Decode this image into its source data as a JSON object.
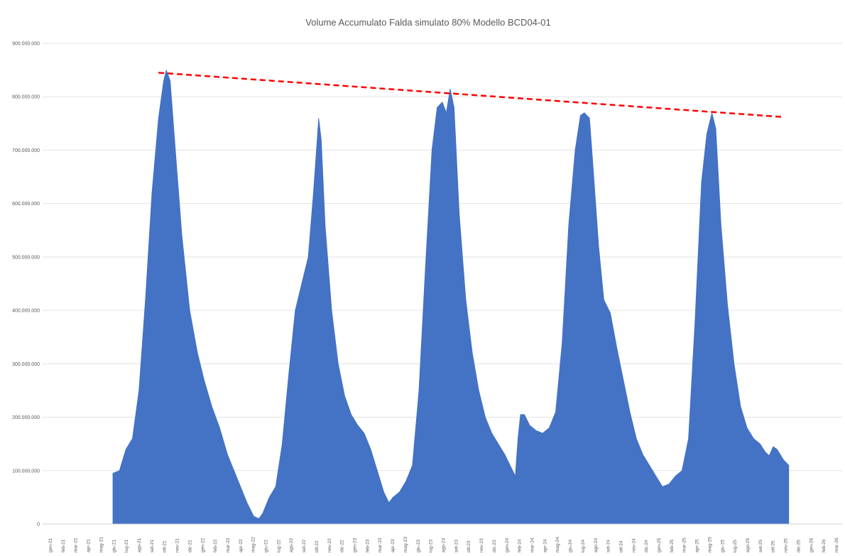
{
  "chart_data": {
    "type": "area",
    "title": "Volume Accumulato Falda simulato 80% Modello BCD04-01",
    "xlabel": "",
    "ylabel": "",
    "ylim": [
      0,
      900000000
    ],
    "y_ticks": [
      {
        "value": 0,
        "label": "0"
      },
      {
        "value": 100000000,
        "label": "100.000.000"
      },
      {
        "value": 200000000,
        "label": "200.000.000"
      },
      {
        "value": 300000000,
        "label": "300.000.000"
      },
      {
        "value": 400000000,
        "label": "400.000.000"
      },
      {
        "value": 500000000,
        "label": "500.000.000"
      },
      {
        "value": 600000000,
        "label": "600.000.000"
      },
      {
        "value": 700000000,
        "label": "700.000.000"
      },
      {
        "value": 800000000,
        "label": "800.000.000"
      },
      {
        "value": 900000000,
        "label": "900.000.000"
      }
    ],
    "grid": true,
    "legend": "none",
    "categories": [
      "gen-21",
      "feb-21",
      "mar-21",
      "apr-21",
      "mag-21",
      "giu-21",
      "lug-21",
      "ago-21",
      "set-21",
      "ott-21",
      "nov-21",
      "dic-21",
      "gen-22",
      "feb-22",
      "mar-22",
      "apr-22",
      "mag-22",
      "giu-22",
      "lug-22",
      "ago-22",
      "set-22",
      "ott-22",
      "nov-22",
      "dic-22",
      "gen-23",
      "feb-23",
      "mar-23",
      "apr-23",
      "mag-23",
      "giu-23",
      "lug-23",
      "ago-23",
      "set-23",
      "ott-23",
      "nov-23",
      "dic-23",
      "gen-24",
      "feb-24",
      "mar-24",
      "apr-24",
      "mag-24",
      "giu-24",
      "lug-24",
      "ago-24",
      "set-24",
      "ott-24",
      "nov-24",
      "dic-24",
      "gen-25",
      "feb-25",
      "mar-25",
      "apr-25",
      "mag-25",
      "giu-25",
      "lug-25",
      "ago-25",
      "set-25",
      "ott-25",
      "nov-25",
      "dic-25",
      "gen-26",
      "feb-26",
      "mar-26"
    ],
    "series": [
      {
        "color": "#4472C4",
        "points": [
          [
            4.0,
            0
          ],
          [
            4.0,
            95000000
          ],
          [
            4.5,
            100000000
          ],
          [
            5.0,
            140000000
          ],
          [
            5.5,
            160000000
          ],
          [
            6.0,
            250000000
          ],
          [
            6.5,
            420000000
          ],
          [
            7.0,
            620000000
          ],
          [
            7.5,
            760000000
          ],
          [
            7.9,
            830000000
          ],
          [
            8.1,
            850000000
          ],
          [
            8.4,
            830000000
          ],
          [
            8.8,
            700000000
          ],
          [
            9.3,
            540000000
          ],
          [
            9.9,
            400000000
          ],
          [
            10.5,
            320000000
          ],
          [
            11.0,
            270000000
          ],
          [
            11.6,
            220000000
          ],
          [
            12.2,
            180000000
          ],
          [
            12.8,
            130000000
          ],
          [
            13.3,
            100000000
          ],
          [
            13.8,
            70000000
          ],
          [
            14.3,
            40000000
          ],
          [
            14.8,
            15000000
          ],
          [
            15.2,
            10000000
          ],
          [
            15.5,
            20000000
          ],
          [
            16.0,
            50000000
          ],
          [
            16.5,
            70000000
          ],
          [
            17.0,
            150000000
          ],
          [
            17.5,
            280000000
          ],
          [
            18.0,
            400000000
          ],
          [
            18.5,
            450000000
          ],
          [
            19.0,
            500000000
          ],
          [
            19.4,
            620000000
          ],
          [
            19.8,
            760000000
          ],
          [
            20.0,
            720000000
          ],
          [
            20.3,
            560000000
          ],
          [
            20.8,
            400000000
          ],
          [
            21.3,
            300000000
          ],
          [
            21.8,
            240000000
          ],
          [
            22.3,
            205000000
          ],
          [
            22.8,
            185000000
          ],
          [
            23.3,
            170000000
          ],
          [
            23.8,
            140000000
          ],
          [
            24.3,
            100000000
          ],
          [
            24.8,
            60000000
          ],
          [
            25.2,
            40000000
          ],
          [
            25.5,
            50000000
          ],
          [
            26.0,
            60000000
          ],
          [
            26.5,
            80000000
          ],
          [
            27.0,
            110000000
          ],
          [
            27.5,
            250000000
          ],
          [
            28.0,
            480000000
          ],
          [
            28.5,
            700000000
          ],
          [
            28.9,
            780000000
          ],
          [
            29.3,
            790000000
          ],
          [
            29.6,
            770000000
          ],
          [
            29.9,
            815000000
          ],
          [
            30.2,
            780000000
          ],
          [
            30.6,
            580000000
          ],
          [
            31.1,
            420000000
          ],
          [
            31.6,
            320000000
          ],
          [
            32.1,
            250000000
          ],
          [
            32.6,
            200000000
          ],
          [
            33.1,
            170000000
          ],
          [
            33.6,
            150000000
          ],
          [
            34.1,
            130000000
          ],
          [
            34.5,
            110000000
          ],
          [
            34.9,
            90000000
          ],
          [
            35.1,
            160000000
          ],
          [
            35.3,
            205000000
          ],
          [
            35.6,
            205000000
          ],
          [
            36.0,
            185000000
          ],
          [
            36.5,
            175000000
          ],
          [
            37.0,
            170000000
          ],
          [
            37.5,
            180000000
          ],
          [
            38.0,
            210000000
          ],
          [
            38.5,
            340000000
          ],
          [
            39.0,
            560000000
          ],
          [
            39.5,
            700000000
          ],
          [
            39.9,
            765000000
          ],
          [
            40.2,
            770000000
          ],
          [
            40.6,
            760000000
          ],
          [
            40.9,
            660000000
          ],
          [
            41.3,
            520000000
          ],
          [
            41.7,
            420000000
          ],
          [
            42.2,
            395000000
          ],
          [
            42.7,
            330000000
          ],
          [
            43.2,
            270000000
          ],
          [
            43.7,
            210000000
          ],
          [
            44.2,
            160000000
          ],
          [
            44.7,
            130000000
          ],
          [
            45.2,
            110000000
          ],
          [
            45.7,
            90000000
          ],
          [
            46.2,
            70000000
          ],
          [
            46.7,
            75000000
          ],
          [
            47.2,
            90000000
          ],
          [
            47.7,
            100000000
          ],
          [
            48.2,
            160000000
          ],
          [
            48.7,
            380000000
          ],
          [
            49.2,
            640000000
          ],
          [
            49.6,
            730000000
          ],
          [
            50.0,
            770000000
          ],
          [
            50.3,
            740000000
          ],
          [
            50.7,
            560000000
          ],
          [
            51.2,
            410000000
          ],
          [
            51.7,
            300000000
          ],
          [
            52.2,
            220000000
          ],
          [
            52.7,
            180000000
          ],
          [
            53.2,
            160000000
          ],
          [
            53.7,
            150000000
          ],
          [
            54.1,
            135000000
          ],
          [
            54.4,
            128000000
          ],
          [
            54.7,
            145000000
          ],
          [
            55.0,
            140000000
          ],
          [
            55.5,
            120000000
          ],
          [
            55.9,
            110000000
          ],
          [
            55.9,
            0
          ]
        ]
      }
    ],
    "trend_line": {
      "color": "#FF0000",
      "style": "dashed",
      "points": [
        [
          7.5,
          845000000
        ],
        [
          55.5,
          762000000
        ]
      ]
    }
  }
}
